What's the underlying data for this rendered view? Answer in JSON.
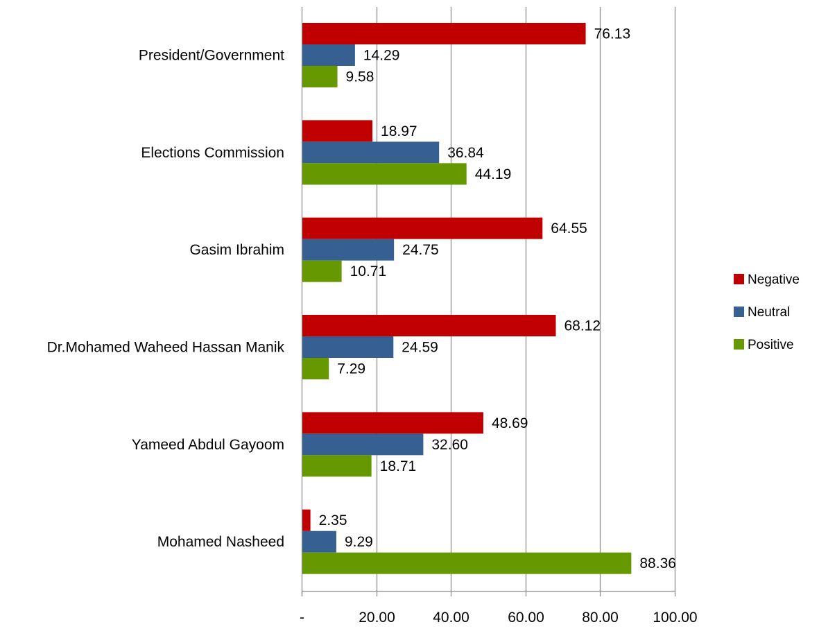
{
  "chart_data": {
    "type": "bar",
    "orientation": "horizontal",
    "categories": [
      "President/Government",
      "Elections Commission",
      "Gasim Ibrahim",
      "Dr.Mohamed Waheed Hassan Manik",
      "Yameed Abdul Gayoom",
      "Mohamed Nasheed"
    ],
    "series": [
      {
        "name": "Negative",
        "color": "#C00000",
        "values": [
          76.13,
          18.97,
          64.55,
          68.12,
          48.69,
          2.35
        ],
        "labels": [
          "76.13",
          "18.97",
          "64.55",
          "68.12",
          "48.69",
          "2.35"
        ]
      },
      {
        "name": "Neutral",
        "color": "#376092",
        "values": [
          14.29,
          36.84,
          24.75,
          24.59,
          32.6,
          9.29
        ],
        "labels": [
          "14.29",
          "36.84",
          "24.75",
          "24.59",
          "32.60",
          "9.29"
        ]
      },
      {
        "name": "Positive",
        "color": "#669900",
        "values": [
          9.58,
          44.19,
          10.71,
          7.29,
          18.71,
          88.36
        ],
        "labels": [
          "9.58",
          "44.19",
          "10.71",
          "7.29",
          "18.71",
          "88.36"
        ]
      }
    ],
    "xlim": [
      0,
      100
    ],
    "xticks": [
      0,
      20,
      40,
      60,
      80,
      100
    ],
    "xtick_labels": [
      "-",
      "20.00",
      "40.00",
      "60.00",
      "80.00",
      "100.00"
    ],
    "grid": true,
    "legend": "right",
    "title": "",
    "xlabel": "",
    "ylabel": ""
  }
}
